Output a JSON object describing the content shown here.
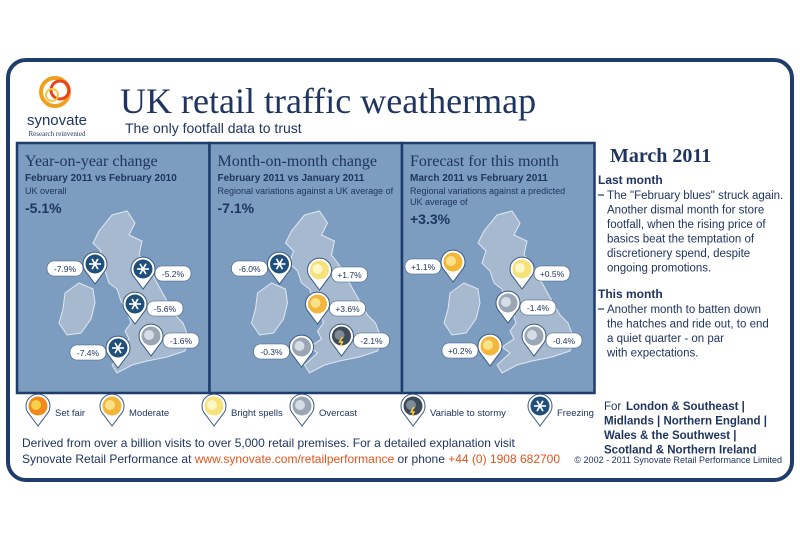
{
  "header": {
    "logo": "synovate",
    "tagline": "Research reinvented",
    "title": "UK retail traffic weathermap",
    "subtitle": "The only footfall data to trust"
  },
  "panels": [
    {
      "title": "Year-on-year change",
      "period": "February 2011 vs February 2010",
      "description": [
        "UK overall"
      ],
      "headline": "-5.1%",
      "regions": [
        {
          "label": "-7.9%",
          "icon": "freezing"
        },
        {
          "label": "-5.2%",
          "icon": "freezing"
        },
        {
          "label": "-5.6%",
          "icon": "freezing"
        },
        {
          "label": "-1.6%",
          "icon": "overcast"
        },
        {
          "label": "-7.4%",
          "icon": "freezing"
        }
      ]
    },
    {
      "title": "Month-on-month change",
      "period": "February 2011 vs January 2011",
      "description": [
        "Regional variations against a UK average of"
      ],
      "headline": "-7.1%",
      "regions": [
        {
          "label": "-6.0%",
          "icon": "freezing"
        },
        {
          "label": "+1.7%",
          "icon": "bright"
        },
        {
          "label": "+3.6%",
          "icon": "moderate"
        },
        {
          "label": "-2.1%",
          "icon": "stormy"
        },
        {
          "label": "-0.3%",
          "icon": "overcast"
        }
      ]
    },
    {
      "title": "Forecast for this month",
      "period": "March 2011 vs February 2011",
      "description": [
        "Regional variations against a predicted",
        "UK average of"
      ],
      "headline": "+3.3%",
      "regions": [
        {
          "label": "+1.1%",
          "icon": "moderate"
        },
        {
          "label": "+0.5%",
          "icon": "bright"
        },
        {
          "label": "-1.4%",
          "icon": "overcast"
        },
        {
          "label": "-0.4%",
          "icon": "overcast"
        },
        {
          "label": "+0.2%",
          "icon": "moderate"
        }
      ]
    }
  ],
  "legend": [
    {
      "icon": "setfair",
      "label": "Set fair"
    },
    {
      "icon": "moderate",
      "label": "Moderate"
    },
    {
      "icon": "bright",
      "label": "Bright spells"
    },
    {
      "icon": "overcast",
      "label": "Overcast"
    },
    {
      "icon": "stormy",
      "label": "Variable to stormy"
    },
    {
      "icon": "freezing",
      "label": "Freezing"
    }
  ],
  "sidebar": {
    "heading": "March 2011",
    "sections": [
      {
        "title": "Last month",
        "lines": [
          "The \"February blues\" struck again.",
          "Another dismal month for store",
          "footfall, when the rising price of",
          "basics beat the temptation of",
          "discretionery spend, despite",
          "ongoing promotions."
        ]
      },
      {
        "title": "This month",
        "lines": [
          "Another month to batten down",
          "the hatches and ride out, to end",
          "a quiet quarter - on par",
          "with expectations."
        ]
      }
    ],
    "regions_intro": "For",
    "region_lines": [
      "London & Southeast |",
      "Midlands | Northern England |",
      "Wales & the Southwest |",
      "Scotland & Northern Ireland"
    ]
  },
  "footer": {
    "line1": "Derived from over a billion visits to over 5,000 retail premises. For a detailed explanation visit",
    "line2_prefix": "Synovate Retail Performance at",
    "url": "www.synovate.com/retailperformance",
    "line2_mid": "or phone",
    "phone": "+44 (0) 1908 682700",
    "copyright": "© 2002 - 2011 Synovate Retail Performance Limited"
  }
}
